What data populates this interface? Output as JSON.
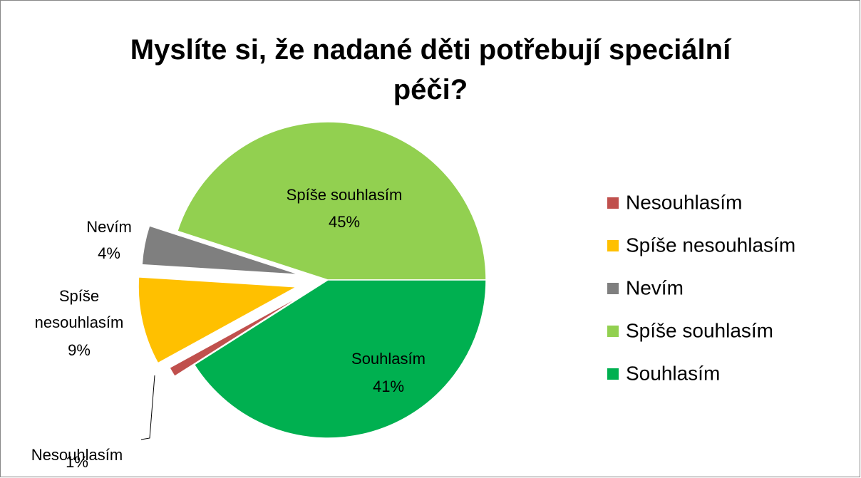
{
  "chart_data": {
    "type": "pie",
    "title": "Myslíte si, že nadané děti potřebují speciální péči?",
    "categories": [
      "Nesouhlasím",
      "Spíše nesouhlasím",
      "Nevím",
      "Spíše souhlasím",
      "Souhlasím"
    ],
    "values": [
      1,
      9,
      4,
      45,
      41
    ],
    "value_labels": [
      "1%",
      "9%",
      "4%",
      "45%",
      "41%"
    ],
    "colors": [
      "#c0504d",
      "#ffc000",
      "#7f7f7f",
      "#92d050",
      "#00b050"
    ],
    "legend": "right"
  }
}
